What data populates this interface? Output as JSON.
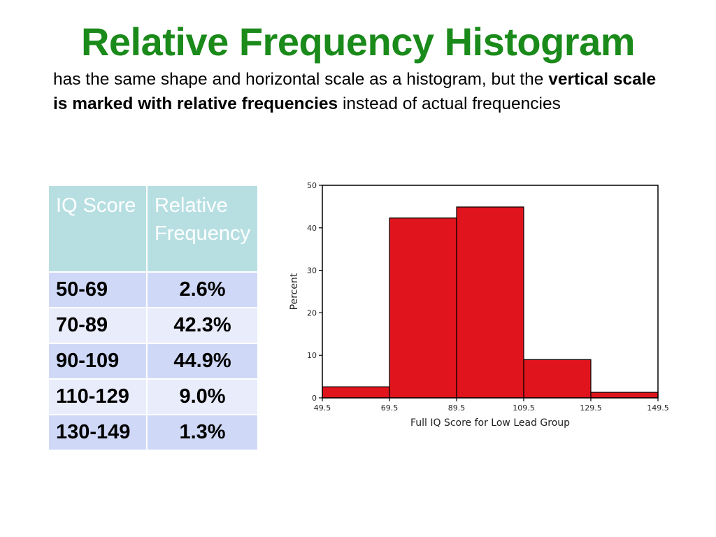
{
  "title": "Relative Frequency Histogram",
  "subtitle": {
    "part1": "has the same shape and horizontal scale as a histogram, but the ",
    "bold": "vertical scale is marked with relative frequencies",
    "part2": " instead of actual frequencies"
  },
  "table": {
    "headers": [
      "IQ Score",
      "Relative Frequency"
    ],
    "rows": [
      [
        "50-69",
        "2.6%"
      ],
      [
        "70-89",
        "42.3%"
      ],
      [
        "90-109",
        "44.9%"
      ],
      [
        "110-129",
        "9.0%"
      ],
      [
        "130-149",
        "1.3%"
      ]
    ],
    "colors": {
      "header_bg": "#b7dfe2",
      "row_odd_bg": "#cfd9f7",
      "row_even_bg": "#e8ecfb"
    }
  },
  "colors": {
    "title": "#1a8a1a",
    "bar_fill": "#e0141c",
    "bar_stroke": "#000000"
  },
  "chart_data": {
    "type": "bar",
    "xlabel": "Full IQ Score for Low Lead Group",
    "ylabel": "Percent",
    "bin_edges": [
      49.5,
      69.5,
      89.5,
      109.5,
      129.5,
      149.5
    ],
    "x_tick_labels": [
      "49.5",
      "69.5",
      "89.5",
      "109.5",
      "129.5",
      "149.5"
    ],
    "values": [
      2.6,
      42.3,
      44.9,
      9.0,
      1.3
    ],
    "ylim": [
      0,
      50
    ],
    "y_ticks": [
      0,
      10,
      20,
      30,
      40,
      50
    ],
    "y_tick_labels": [
      "0",
      "10",
      "20",
      "30",
      "40",
      "50"
    ],
    "grid": false,
    "legend": "none"
  }
}
